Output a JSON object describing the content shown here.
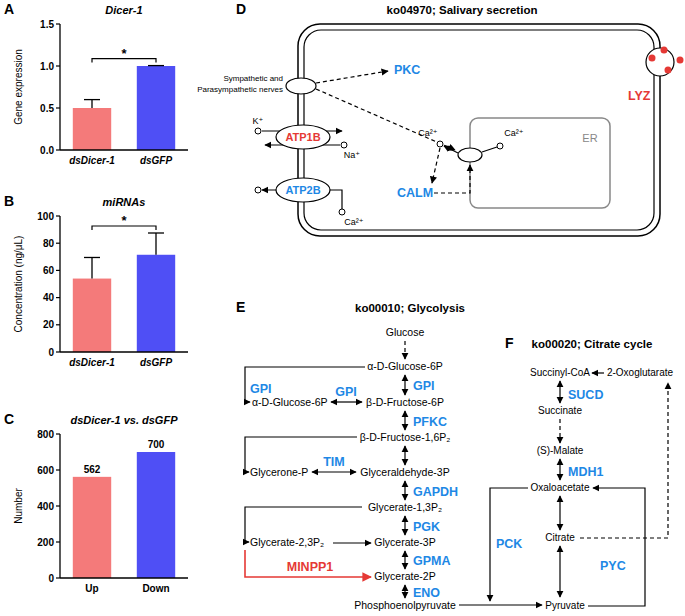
{
  "chart_data": [
    {
      "type": "bar",
      "panel_label": "A",
      "title": "Dicer-1",
      "y_label": "Gene expression",
      "categories": [
        "dsDicer-1",
        "dsGFP"
      ],
      "values": [
        0.5,
        1.0
      ],
      "errors": [
        0.1,
        0.005
      ],
      "colors": [
        "#f47a7a",
        "#4f4ff5"
      ],
      "ylim": [
        0,
        1.5
      ],
      "yticks": [
        {
          "value": 0,
          "label": "0.0"
        },
        {
          "value": 0.5,
          "label": "0.5"
        },
        {
          "value": 1,
          "label": "1.0"
        },
        {
          "value": 1.5,
          "label": "1.5"
        }
      ],
      "annotations": [
        "*"
      ]
    },
    {
      "type": "bar",
      "panel_label": "B",
      "title": "miRNAs",
      "y_label": "Concentration (ng/μL)",
      "categories": [
        "dsDicer-1",
        "dsGFP"
      ],
      "values": [
        54,
        71.5
      ],
      "errors": [
        15.5,
        16
      ],
      "colors": [
        "#f47a7a",
        "#4f4ff5"
      ],
      "ylim": [
        0,
        100
      ],
      "yticks": [
        0,
        20,
        40,
        60,
        80,
        100
      ],
      "annotations": [
        "*"
      ]
    },
    {
      "type": "bar",
      "panel_label": "C",
      "title": "dsDicer-1 vs. dsGFP",
      "y_label": "Number",
      "categories": [
        "Up",
        "Down"
      ],
      "values": [
        562,
        700
      ],
      "colors": [
        "#f47a7a",
        "#4f4ff5"
      ],
      "ylim": [
        0,
        800
      ],
      "yticks": [
        0,
        200,
        400,
        600,
        800
      ],
      "data_labels": true
    }
  ],
  "panels": [
    {
      "panel_label": "D",
      "title": "ko04970; Salivary secretion",
      "nodes": [
        {
          "label": "Sympathetic and",
          "color": "#000000"
        },
        {
          "label": "Parasympathetic nerves",
          "color": "#000000"
        },
        {
          "label": "PKC",
          "color": "#1e88e5"
        },
        {
          "label": "ATP1B",
          "color": "#e53935"
        },
        {
          "label": "K⁺",
          "color": "#000000"
        },
        {
          "label": "Na⁺",
          "color": "#000000"
        },
        {
          "label": "ATP2B",
          "color": "#1e88e5"
        },
        {
          "label": "Ca²⁺",
          "color": "#000000"
        },
        {
          "label": "CALM",
          "color": "#1e88e5"
        },
        {
          "label": "Ca²⁺",
          "color": "#000000"
        },
        {
          "label": "Ca²⁺",
          "color": "#000000"
        },
        {
          "label": "ER",
          "color": "#888888"
        },
        {
          "label": "LYZ",
          "color": "#e53935"
        }
      ]
    },
    {
      "panel_label": "E",
      "title": "ko00010; Glycolysis",
      "nodes": [
        {
          "label": "Glucose",
          "color": "#000000"
        },
        {
          "label": "α-D-Glucose-6P",
          "color": "#000000"
        },
        {
          "label": "α-D-Glucose-6P",
          "color": "#000000"
        },
        {
          "label": "β-D-Fructose-6P",
          "color": "#000000"
        },
        {
          "label": "β-D-Fructose-1,6P₂",
          "color": "#000000"
        },
        {
          "label": "Glycerone-P",
          "color": "#000000"
        },
        {
          "label": "Glyceraldehyde-3P",
          "color": "#000000"
        },
        {
          "label": "Glycerate-1,3P₂",
          "color": "#000000"
        },
        {
          "label": "Glycerate-2,3P₂",
          "color": "#000000"
        },
        {
          "label": "Glycerate-3P",
          "color": "#000000"
        },
        {
          "label": "Glycerate-2P",
          "color": "#000000"
        },
        {
          "label": "Phosphoenolpyruvate",
          "color": "#000000"
        },
        {
          "label": "GPI",
          "color": "#1e88e5"
        },
        {
          "label": "GPI",
          "color": "#1e88e5"
        },
        {
          "label": "GPI",
          "color": "#1e88e5"
        },
        {
          "label": "PFKC",
          "color": "#1e88e5"
        },
        {
          "label": "TIM",
          "color": "#1e88e5"
        },
        {
          "label": "GAPDH",
          "color": "#1e88e5"
        },
        {
          "label": "PGK",
          "color": "#1e88e5"
        },
        {
          "label": "MINPP1",
          "color": "#e53935"
        },
        {
          "label": "GPMA",
          "color": "#1e88e5"
        },
        {
          "label": "ENO",
          "color": "#1e88e5"
        }
      ]
    },
    {
      "panel_label": "F",
      "title": "ko00020; Citrate cycle",
      "nodes": [
        {
          "label": "Succinyl-CoA",
          "color": "#000000"
        },
        {
          "label": "2-Oxoglutarate",
          "color": "#000000"
        },
        {
          "label": "Succinate",
          "color": "#000000"
        },
        {
          "label": "(S)-Malate",
          "color": "#000000"
        },
        {
          "label": "Oxaloacetate",
          "color": "#000000"
        },
        {
          "label": "Citrate",
          "color": "#000000"
        },
        {
          "label": "Pyruvate",
          "color": "#000000"
        },
        {
          "label": "SUCD",
          "color": "#1e88e5"
        },
        {
          "label": "MDH1",
          "color": "#1e88e5"
        },
        {
          "label": "PYC",
          "color": "#1e88e5"
        },
        {
          "label": "PCK",
          "color": "#1e88e5"
        }
      ]
    }
  ]
}
